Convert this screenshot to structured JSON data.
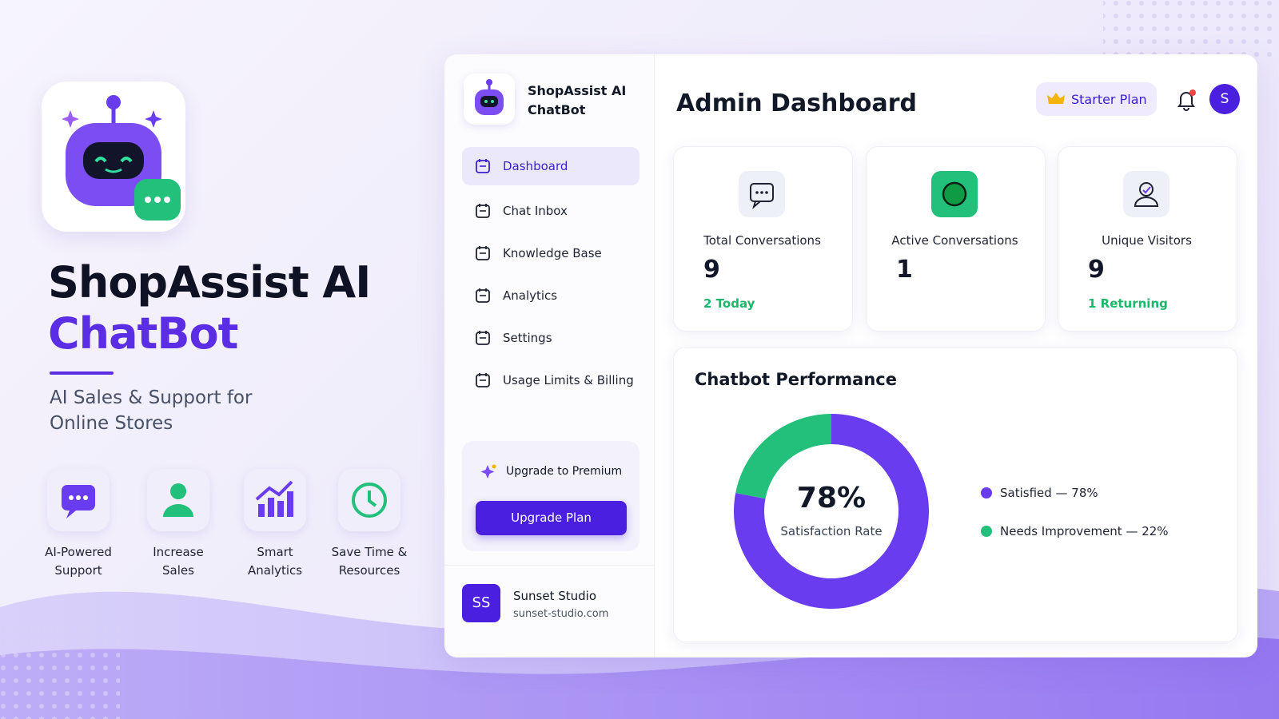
{
  "hero": {
    "title_line1": "ShopAssist AI",
    "title_line2": "ChatBot",
    "subtitle_line1": "AI Sales & Support for",
    "subtitle_line2": "Online Stores",
    "features": [
      {
        "line1": "AI-Powered",
        "line2": "Support"
      },
      {
        "line1": "Increase",
        "line2": "Sales"
      },
      {
        "line1": "Smart",
        "line2": "Analytics"
      },
      {
        "line1": "Save Time &",
        "line2": "Resources"
      }
    ]
  },
  "sidebar": {
    "brand_line1": "ShopAssist AI",
    "brand_line2": "ChatBot",
    "nav": [
      {
        "label": "Dashboard",
        "active": true
      },
      {
        "label": "Chat Inbox",
        "active": false
      },
      {
        "label": "Knowledge Base",
        "active": false
      },
      {
        "label": "Analytics",
        "active": false
      },
      {
        "label": "Settings",
        "active": false
      },
      {
        "label": "Usage Limits & Billing",
        "active": false
      }
    ],
    "upgrade": {
      "title": "Upgrade to Premium",
      "button": "Upgrade Plan"
    },
    "account": {
      "initials": "SS",
      "name": "Sunset Studio",
      "domain": "sunset-studio.com"
    }
  },
  "header": {
    "title": "Admin Dashboard",
    "plan": "Starter Plan",
    "avatar": "S"
  },
  "stats": [
    {
      "label": "Total Conversations",
      "value": 9,
      "note": "2 Today"
    },
    {
      "label": "Active Conversations",
      "value": 1
    },
    {
      "label": "Unique Visitors",
      "value": 9,
      "note": "1 Returning"
    }
  ],
  "performance": {
    "title": "Chatbot Performance",
    "center_value": "78%",
    "center_label": "Satisfaction Rate",
    "segments": [
      {
        "label": "Satisfied — 78%",
        "value": 78,
        "color": "#6a3cf0"
      },
      {
        "label": "Needs Improvement — 22%",
        "value": 22,
        "color": "#22c07a"
      }
    ]
  }
}
